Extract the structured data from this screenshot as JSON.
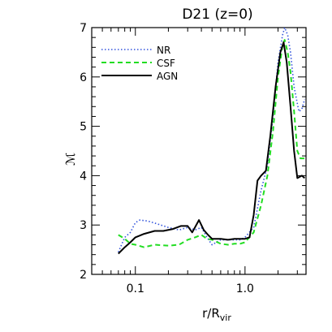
{
  "chart_data": {
    "type": "line",
    "title": "D21 (z=0)",
    "xlabel": "r/R",
    "xlabel_sub": "vir",
    "ylabel": "ℳ",
    "x_scale": "log",
    "xlim": [
      0.04,
      3.6
    ],
    "ylim": [
      2,
      7
    ],
    "x_ticks": [
      {
        "value": 0.1,
        "label": "0.1"
      },
      {
        "value": 1.0,
        "label": "1.0"
      }
    ],
    "y_ticks": [
      {
        "value": 2,
        "label": "2"
      },
      {
        "value": 3,
        "label": "3"
      },
      {
        "value": 4,
        "label": "4"
      },
      {
        "value": 5,
        "label": "5"
      },
      {
        "value": 6,
        "label": "6"
      },
      {
        "value": 7,
        "label": "7"
      }
    ],
    "legend_position": "top-left",
    "series": [
      {
        "name": "NR",
        "color": "#3355dd",
        "style": "dotted",
        "points": [
          [
            0.07,
            2.45
          ],
          [
            0.08,
            2.75
          ],
          [
            0.09,
            2.85
          ],
          [
            0.1,
            3.05
          ],
          [
            0.11,
            3.1
          ],
          [
            0.13,
            3.08
          ],
          [
            0.16,
            3.02
          ],
          [
            0.2,
            2.95
          ],
          [
            0.25,
            2.9
          ],
          [
            0.3,
            2.95
          ],
          [
            0.35,
            2.9
          ],
          [
            0.4,
            2.95
          ],
          [
            0.45,
            2.75
          ],
          [
            0.5,
            2.6
          ],
          [
            0.6,
            2.7
          ],
          [
            0.7,
            2.7
          ],
          [
            0.8,
            2.7
          ],
          [
            0.9,
            2.7
          ],
          [
            1.0,
            2.75
          ],
          [
            1.2,
            2.95
          ],
          [
            1.4,
            3.7
          ],
          [
            1.6,
            4.2
          ],
          [
            1.8,
            5.2
          ],
          [
            2.0,
            6.3
          ],
          [
            2.2,
            6.85
          ],
          [
            2.3,
            7.0
          ],
          [
            2.45,
            6.85
          ],
          [
            2.6,
            6.5
          ],
          [
            2.8,
            5.8
          ],
          [
            3.1,
            5.3
          ],
          [
            3.3,
            5.35
          ],
          [
            3.5,
            5.55
          ]
        ]
      },
      {
        "name": "CSF",
        "color": "#22dd22",
        "style": "dashed",
        "points": [
          [
            0.07,
            2.8
          ],
          [
            0.08,
            2.72
          ],
          [
            0.09,
            2.62
          ],
          [
            0.1,
            2.6
          ],
          [
            0.12,
            2.55
          ],
          [
            0.15,
            2.6
          ],
          [
            0.2,
            2.58
          ],
          [
            0.25,
            2.6
          ],
          [
            0.3,
            2.7
          ],
          [
            0.35,
            2.75
          ],
          [
            0.4,
            2.8
          ],
          [
            0.45,
            2.72
          ],
          [
            0.5,
            2.7
          ],
          [
            0.6,
            2.62
          ],
          [
            0.7,
            2.6
          ],
          [
            0.8,
            2.62
          ],
          [
            0.9,
            2.62
          ],
          [
            1.0,
            2.65
          ],
          [
            1.2,
            2.85
          ],
          [
            1.4,
            3.4
          ],
          [
            1.6,
            4.0
          ],
          [
            1.8,
            4.9
          ],
          [
            2.0,
            6.0
          ],
          [
            2.2,
            6.65
          ],
          [
            2.3,
            6.75
          ],
          [
            2.45,
            6.5
          ],
          [
            2.6,
            6.1
          ],
          [
            2.8,
            5.3
          ],
          [
            3.0,
            4.5
          ],
          [
            3.2,
            4.35
          ],
          [
            3.5,
            4.35
          ]
        ]
      },
      {
        "name": "AGN",
        "color": "#000000",
        "style": "solid",
        "points": [
          [
            0.07,
            2.42
          ],
          [
            0.08,
            2.55
          ],
          [
            0.09,
            2.65
          ],
          [
            0.1,
            2.75
          ],
          [
            0.12,
            2.82
          ],
          [
            0.15,
            2.88
          ],
          [
            0.18,
            2.88
          ],
          [
            0.22,
            2.92
          ],
          [
            0.26,
            2.98
          ],
          [
            0.3,
            2.98
          ],
          [
            0.33,
            2.85
          ],
          [
            0.38,
            3.1
          ],
          [
            0.42,
            2.9
          ],
          [
            0.46,
            2.8
          ],
          [
            0.5,
            2.72
          ],
          [
            0.6,
            2.72
          ],
          [
            0.7,
            2.7
          ],
          [
            0.8,
            2.72
          ],
          [
            0.9,
            2.72
          ],
          [
            1.0,
            2.72
          ],
          [
            1.1,
            2.75
          ],
          [
            1.2,
            3.2
          ],
          [
            1.3,
            3.9
          ],
          [
            1.4,
            4.0
          ],
          [
            1.55,
            4.1
          ],
          [
            1.7,
            4.8
          ],
          [
            1.9,
            5.8
          ],
          [
            2.1,
            6.5
          ],
          [
            2.25,
            6.7
          ],
          [
            2.4,
            6.3
          ],
          [
            2.6,
            5.4
          ],
          [
            2.8,
            4.5
          ],
          [
            3.0,
            3.95
          ],
          [
            3.3,
            4.0
          ],
          [
            3.5,
            3.95
          ]
        ]
      }
    ]
  }
}
